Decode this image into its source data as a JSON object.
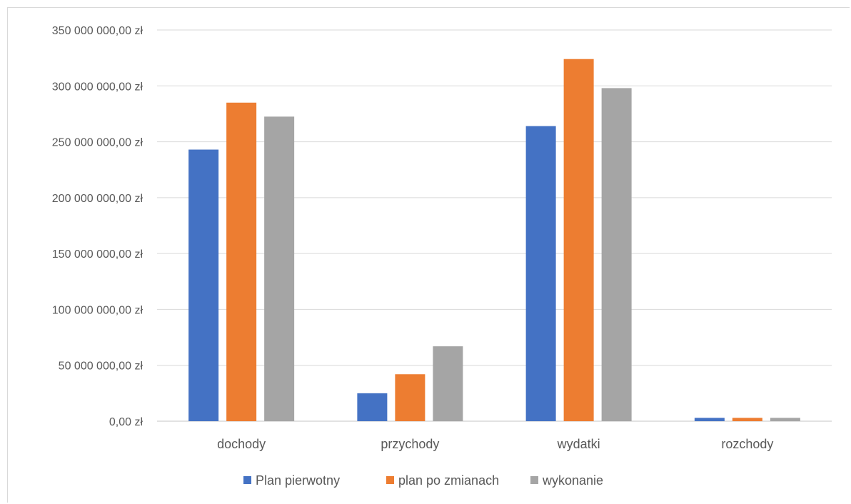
{
  "chart_data": {
    "type": "bar",
    "categories": [
      "dochody",
      "przychody",
      "wydatki",
      "rozchody"
    ],
    "series": [
      {
        "name": "Plan pierwotny",
        "color": "#4472C4",
        "values": [
          243000000,
          25000000,
          264000000,
          3000000
        ]
      },
      {
        "name": "plan po zmianach",
        "color": "#ED7D31",
        "values": [
          285000000,
          42000000,
          324000000,
          3000000
        ]
      },
      {
        "name": "wykonanie",
        "color": "#A5A5A5",
        "values": [
          272500000,
          67000000,
          298000000,
          3000000
        ]
      }
    ],
    "yticks": [
      {
        "value": 0,
        "label": "0,00 zł"
      },
      {
        "value": 50000000,
        "label": "50 000 000,00 zł"
      },
      {
        "value": 100000000,
        "label": "100 000 000,00 zł"
      },
      {
        "value": 150000000,
        "label": "150 000 000,00 zł"
      },
      {
        "value": 200000000,
        "label": "200 000 000,00 zł"
      },
      {
        "value": 250000000,
        "label": "250 000 000,00 zł"
      },
      {
        "value": 300000000,
        "label": "300 000 000,00 zł"
      },
      {
        "value": 350000000,
        "label": "350 000 000,00 zł"
      }
    ],
    "ylim": [
      0,
      350000000
    ],
    "grid": true,
    "legend_position": "bottom"
  }
}
